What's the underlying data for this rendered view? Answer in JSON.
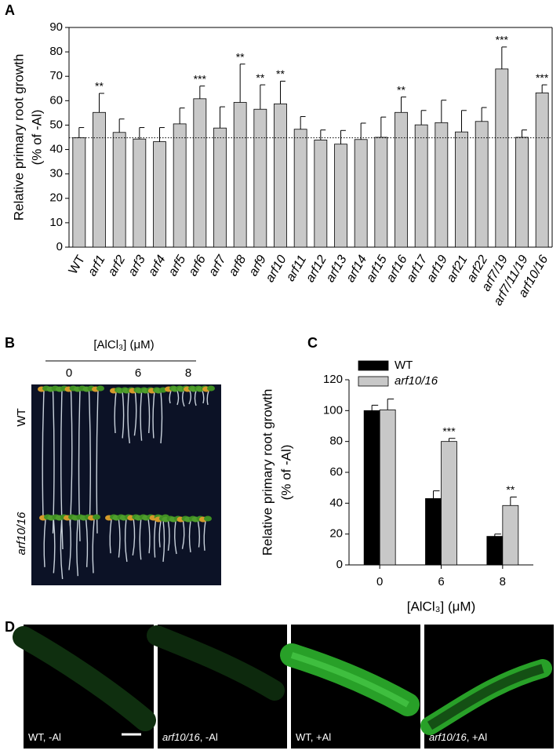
{
  "chart_data": [
    {
      "type": "bar",
      "panel": "A",
      "ylabel": [
        "Relative primary root growth",
        "(% of -Al)"
      ],
      "categories": [
        "WT",
        "arf1",
        "arf2",
        "arf3",
        "arf4",
        "arf5",
        "arf6",
        "arf7",
        "arf8",
        "arf9",
        "arf10",
        "arf11",
        "arf12",
        "arf13",
        "arf14",
        "arf15",
        "arf16",
        "arf17",
        "arf19",
        "arf21",
        "arf22",
        "arf7/19",
        "arf7/11/19",
        "arf10/16"
      ],
      "values": [
        44.8,
        55.2,
        47,
        44.3,
        43.2,
        50.5,
        60.8,
        48.8,
        59.3,
        56.5,
        58.7,
        48.3,
        43.9,
        42.2,
        44.1,
        45,
        55.2,
        50.1,
        51,
        47.2,
        51.5,
        73,
        45,
        63.2
      ],
      "errors": [
        4.2,
        7.8,
        5.5,
        4.7,
        5.8,
        6.5,
        5.2,
        8.7,
        15.7,
        10,
        9.3,
        5.2,
        4.1,
        5.6,
        6.7,
        8.3,
        6.3,
        5.9,
        9.2,
        8.8,
        5.7,
        9,
        3,
        3.3
      ],
      "significance": [
        null,
        "**",
        null,
        null,
        null,
        null,
        "***",
        null,
        "**",
        "**",
        "**",
        null,
        null,
        null,
        null,
        null,
        "**",
        null,
        null,
        null,
        null,
        "***",
        null,
        "***"
      ],
      "color": "#c8c8c8",
      "ylim": [
        0,
        90
      ],
      "yticks": [
        0,
        10,
        20,
        30,
        40,
        50,
        60,
        70,
        80,
        90
      ]
    },
    {
      "type": "bar",
      "panel": "C",
      "ylabel": [
        "Relative primary root growth",
        "(% of -Al)"
      ],
      "xlabel": "[AlCl₃] (μM)",
      "categories": [
        "0",
        "6",
        "8"
      ],
      "series": [
        {
          "name": "WT",
          "color": "#000000",
          "values": [
            100,
            43,
            18.5
          ],
          "errors": [
            3.5,
            5,
            1.5
          ],
          "significance": [
            null,
            null,
            null
          ]
        },
        {
          "name": "arf10/16",
          "color": "#c8c8c8",
          "values": [
            100.5,
            80,
            38.5
          ],
          "errors": [
            7,
            2,
            5.5
          ],
          "significance": [
            null,
            "***",
            "**"
          ]
        }
      ],
      "legend": "upper left",
      "ylim": [
        0,
        120
      ],
      "yticks": [
        0,
        20,
        40,
        60,
        80,
        100,
        120
      ]
    }
  ],
  "panel_b": {
    "panel": "B",
    "header": "[AlCl₃] (μM)",
    "columns": [
      "0",
      "6",
      "8"
    ],
    "rows": [
      "WT",
      "arf10/16"
    ]
  },
  "panel_d": {
    "panel": "D",
    "images": [
      [
        "WT",
        ", -Al"
      ],
      [
        "arf10/16",
        ", -Al"
      ],
      [
        "WT",
        ", +Al"
      ],
      [
        "arf10/16",
        ", +Al"
      ]
    ]
  }
}
